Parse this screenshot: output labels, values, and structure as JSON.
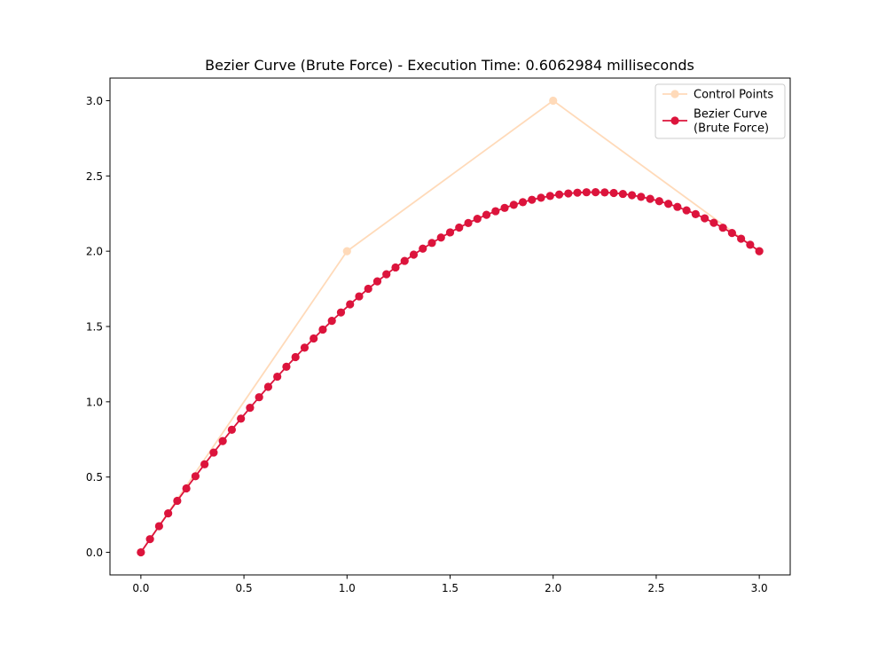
{
  "chart_data": {
    "type": "line",
    "title": "Bezier Curve (Brute Force) - Execution Time: 0.6062984 milliseconds",
    "xlabel": "",
    "ylabel": "",
    "xlim": [
      -0.15,
      3.15
    ],
    "ylim": [
      -0.15,
      3.15
    ],
    "x_ticks": [
      0.0,
      0.5,
      1.0,
      1.5,
      2.0,
      2.5,
      3.0
    ],
    "y_ticks": [
      0.0,
      0.5,
      1.0,
      1.5,
      2.0,
      2.5,
      3.0
    ],
    "x_tick_labels": [
      "0.0",
      "0.5",
      "1.0",
      "1.5",
      "2.0",
      "2.5",
      "3.0"
    ],
    "y_tick_labels": [
      "0.0",
      "0.5",
      "1.0",
      "1.5",
      "2.0",
      "2.5",
      "3.0"
    ],
    "grid": false,
    "legend_position": "upper right",
    "series": [
      {
        "name": "Control Points",
        "color": "#ffdab9",
        "marker": "circle",
        "points": [
          [
            0,
            0
          ],
          [
            1,
            2
          ],
          [
            2,
            3
          ],
          [
            3,
            2
          ]
        ]
      },
      {
        "name": "Bezier Curve\n(Brute Force)",
        "color": "#dc143c",
        "marker": "circle",
        "curve": "cubic-bezier",
        "control_points": [
          [
            0,
            0
          ],
          [
            1,
            2
          ],
          [
            2,
            3
          ],
          [
            3,
            2
          ]
        ],
        "num_points": 69,
        "x_range": [
          0,
          3
        ],
        "y_range": [
          0,
          2.395
        ]
      }
    ]
  }
}
